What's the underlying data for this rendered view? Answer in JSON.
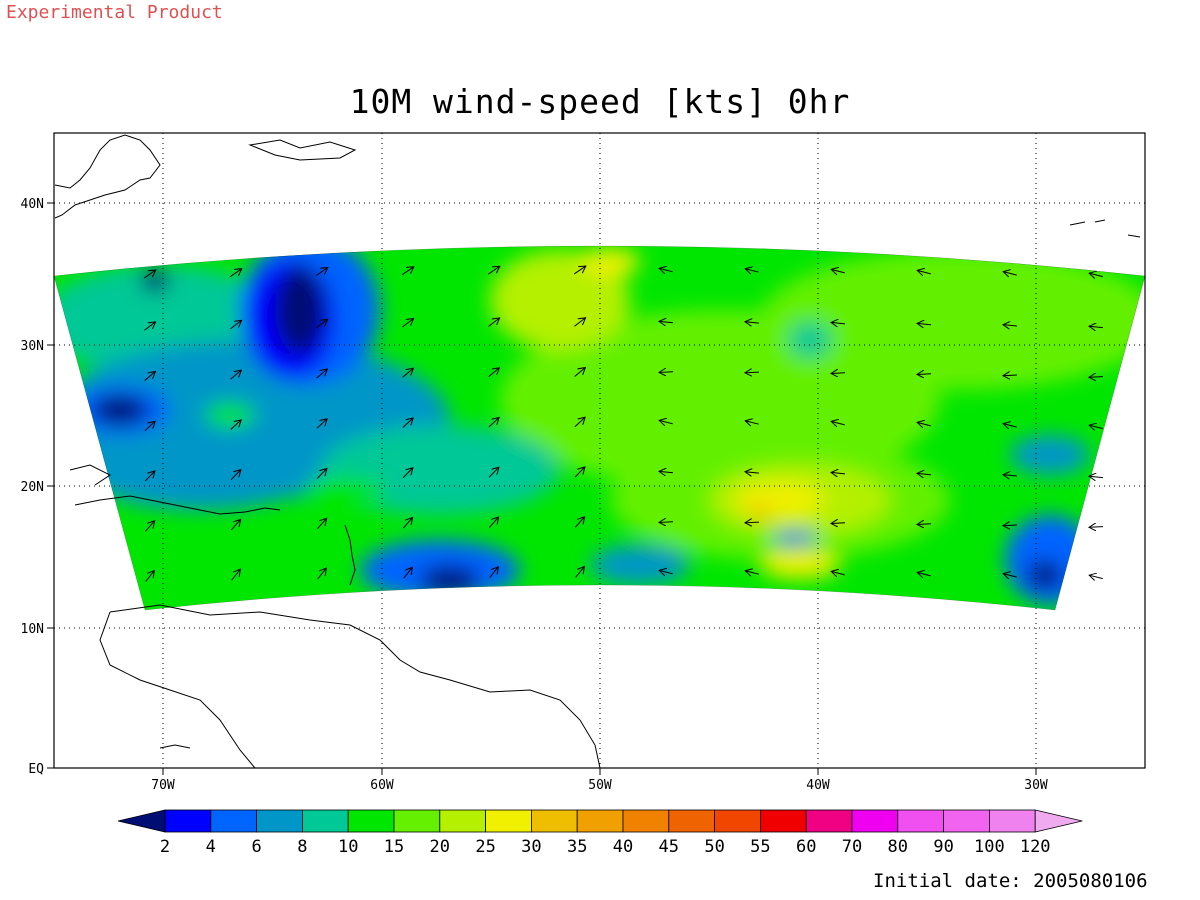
{
  "header": {
    "tag": "Experimental Product",
    "title": "10M wind-speed [kts] 0hr"
  },
  "footer": {
    "initial_date": "Initial date: 2005080106"
  },
  "map": {
    "lon_ticks": [
      "70W",
      "60W",
      "50W",
      "40W",
      "30W"
    ],
    "lat_ticks": [
      "40N",
      "30N",
      "20N",
      "10N",
      "EQ"
    ],
    "colors": {
      "very_low": "#000e73",
      "low": "#0050f0",
      "mid_blue": "#0096c8",
      "teal": "#00c896",
      "green": "#00e600",
      "lime": "#64f000",
      "yellow_green": "#b4f000",
      "yellow": "#f0f000",
      "amber": "#f0be00"
    }
  },
  "colorbar": {
    "labels": [
      "2",
      "4",
      "6",
      "8",
      "10",
      "15",
      "20",
      "25",
      "30",
      "35",
      "40",
      "45",
      "50",
      "55",
      "60",
      "70",
      "80",
      "90",
      "100",
      "120"
    ],
    "colors": [
      "#000e73",
      "#0000ff",
      "#0064ff",
      "#0096c8",
      "#00c896",
      "#00e600",
      "#64f000",
      "#b4f000",
      "#f0f000",
      "#f0be00",
      "#f0a000",
      "#f08200",
      "#f06400",
      "#f04600",
      "#f00000",
      "#f00082",
      "#f000f0",
      "#f050f0",
      "#f064f0",
      "#f082f0",
      "#f0aaf0"
    ]
  }
}
